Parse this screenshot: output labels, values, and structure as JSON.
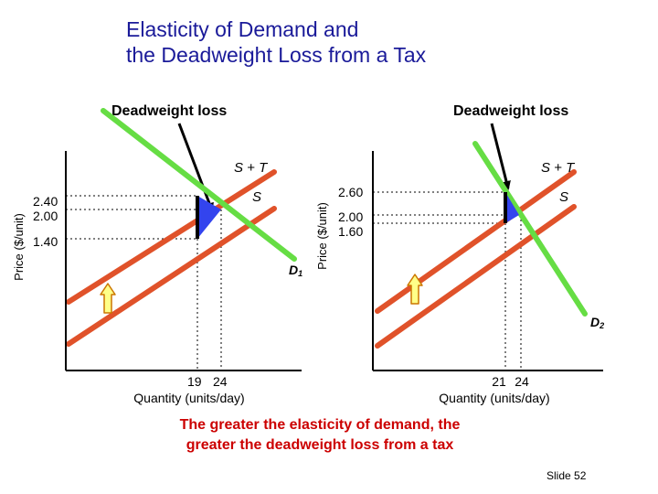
{
  "title": {
    "line1": "Elasticity of Demand and",
    "line2": "the Deadweight Loss from a Tax"
  },
  "caption": {
    "line1": "The greater the elasticity of demand, the",
    "line2": "greater the deadweight loss from a tax"
  },
  "slide_number": "Slide 52",
  "colors": {
    "supply": "#e0522a",
    "demand": "#66dd44",
    "triangle": "#3344ee",
    "tax_bar": "#000000",
    "arrow_fill": "#ffff88",
    "arrow_stroke": "#cc7700",
    "axis": "#000000",
    "title": "#1a1a99",
    "caption": "#cc0000"
  },
  "left_panel": {
    "annotation": "Deadweight loss",
    "y_label": "Price ($/unit)",
    "x_label": "Quantity (units/day)",
    "price_ticks": [
      "2.40",
      "2.00",
      "1.40"
    ],
    "quantity_ticks": [
      "19",
      "24"
    ],
    "supply_tax_label": "S + T",
    "supply_label": "S",
    "demand_label": "D",
    "demand_subscript": "1"
  },
  "right_panel": {
    "annotation": "Deadweight loss",
    "y_label": "Price ($/unit)",
    "x_label": "Quantity (units/day)",
    "price_ticks": [
      "2.60",
      "2.00",
      "1.60"
    ],
    "quantity_ticks": [
      "21",
      "24"
    ],
    "supply_tax_label": "S + T",
    "supply_label": "S",
    "demand_label": "D",
    "demand_subscript": "2"
  }
}
